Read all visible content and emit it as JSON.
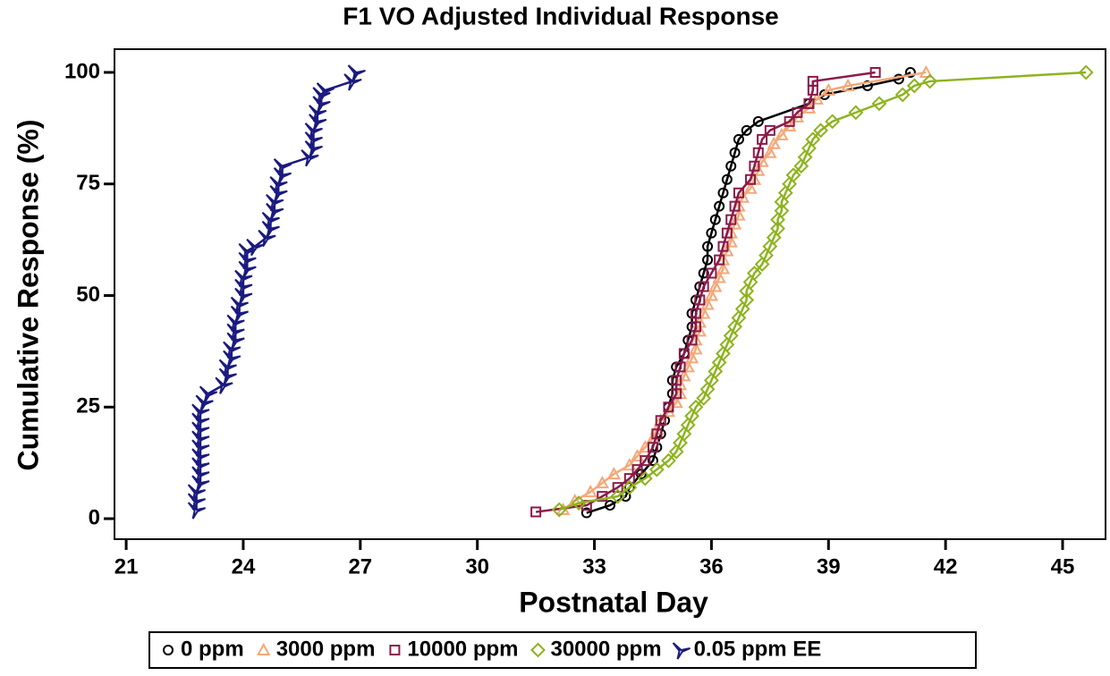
{
  "chart_data": {
    "type": "line",
    "title": "F1 VO Adjusted Individual Response",
    "x_label": "Postnatal Day",
    "y_label": "Cumulative Response (%)",
    "xlim": [
      20.7,
      46.1
    ],
    "ylim": [
      -4.6,
      105.2
    ],
    "xticks": [
      21,
      24,
      27,
      30,
      33,
      36,
      39,
      42,
      45
    ],
    "yticks": [
      0,
      25,
      50,
      75,
      100
    ],
    "legend": "bottom",
    "series": [
      {
        "name": "0 ppm",
        "color": "#000000",
        "marker": "circle",
        "x": [
          32.8,
          33.4,
          33.8,
          33.9,
          34.2,
          34.5,
          34.6,
          34.7,
          34.8,
          34.9,
          35.0,
          35.0,
          35.1,
          35.3,
          35.4,
          35.5,
          35.5,
          35.6,
          35.7,
          35.8,
          35.9,
          35.9,
          36.0,
          36.1,
          36.2,
          36.3,
          36.4,
          36.5,
          36.6,
          36.7,
          36.9,
          37.2,
          38.5,
          38.9,
          40.0,
          40.8,
          41.1
        ],
        "values": [
          1.3,
          3,
          5,
          7,
          10,
          13,
          16,
          19,
          22,
          25,
          28,
          31,
          34,
          37,
          40,
          43,
          46,
          49,
          52,
          55,
          58,
          61,
          64,
          67,
          70,
          73,
          76,
          79,
          82,
          85,
          87,
          89,
          93,
          95,
          97,
          98.5,
          100
        ]
      },
      {
        "name": "3000 ppm",
        "color": "#f4a878",
        "marker": "triangle",
        "x": [
          32.2,
          32.5,
          32.9,
          33.2,
          33.5,
          33.9,
          34.1,
          34.3,
          34.5,
          34.6,
          34.7,
          34.9,
          35.1,
          35.2,
          35.2,
          35.3,
          35.4,
          35.5,
          35.6,
          35.6,
          35.7,
          35.7,
          35.8,
          35.9,
          36.0,
          36.1,
          36.2,
          36.3,
          36.3,
          36.4,
          36.5,
          36.5,
          36.6,
          36.7,
          36.7,
          36.8,
          37.0,
          37.1,
          37.2,
          37.3,
          37.5,
          37.6,
          37.8,
          38.0,
          38.2,
          38.5,
          38.7,
          39.0,
          39.5,
          41.5
        ],
        "values": [
          2,
          4,
          6,
          8,
          10,
          12,
          14,
          16,
          18,
          20,
          22,
          24,
          26,
          28,
          30,
          32,
          34,
          36,
          38,
          40,
          42,
          44,
          46,
          48,
          50,
          52,
          54,
          56,
          58,
          60,
          62,
          64,
          66,
          68,
          70,
          72,
          74,
          76,
          78,
          80,
          82,
          84,
          86,
          88,
          90,
          92,
          94,
          96,
          97,
          100
        ]
      },
      {
        "name": "10000 ppm",
        "color": "#8b1a4a",
        "marker": "square",
        "x": [
          31.5,
          32.8,
          33.2,
          33.6,
          33.9,
          34.1,
          34.3,
          34.5,
          34.6,
          34.7,
          34.9,
          35.1,
          35.1,
          35.2,
          35.3,
          35.5,
          35.6,
          35.6,
          35.7,
          35.8,
          36.0,
          36.2,
          36.3,
          36.4,
          36.5,
          36.6,
          36.7,
          37.0,
          37.1,
          37.2,
          37.3,
          37.5,
          38.0,
          38.2,
          38.5,
          38.6,
          38.6,
          40.2
        ],
        "values": [
          1.5,
          3,
          5,
          7,
          9,
          11,
          13,
          16,
          19,
          22,
          25,
          28,
          31,
          34,
          37,
          40,
          43,
          46,
          49,
          52,
          55,
          58,
          61,
          64,
          67,
          70,
          73,
          76,
          79,
          82,
          85,
          87,
          89,
          91,
          93,
          96,
          98,
          100
        ]
      },
      {
        "name": "30000 ppm",
        "color": "#8db31e",
        "marker": "diamond",
        "x": [
          32.1,
          32.6,
          33.6,
          33.9,
          34.3,
          34.6,
          34.9,
          35.1,
          35.2,
          35.3,
          35.4,
          35.5,
          35.6,
          35.8,
          35.9,
          36.0,
          36.1,
          36.2,
          36.3,
          36.4,
          36.5,
          36.6,
          36.7,
          36.8,
          36.9,
          36.9,
          37.0,
          37.1,
          37.3,
          37.4,
          37.5,
          37.6,
          37.7,
          37.7,
          37.8,
          37.8,
          37.9,
          38.0,
          38.1,
          38.3,
          38.4,
          38.5,
          38.6,
          38.8,
          39.1,
          39.7,
          40.3,
          40.9,
          41.2,
          41.6,
          45.6
        ],
        "values": [
          2,
          3.5,
          5,
          7,
          9,
          11,
          13,
          15,
          17,
          19,
          21,
          23,
          25,
          27,
          29,
          31,
          33,
          35,
          37,
          39,
          41,
          43,
          45,
          47,
          49,
          51,
          53,
          55,
          57,
          59,
          61,
          63,
          65,
          67,
          69,
          71,
          73,
          75,
          77,
          79,
          81,
          83,
          85,
          87,
          89,
          91,
          93,
          95,
          97,
          98,
          100
        ]
      },
      {
        "name": "0.05 ppm EE",
        "color": "#1a1a80",
        "marker": "star",
        "x": [
          22.8,
          22.8,
          22.8,
          22.9,
          22.9,
          22.9,
          22.9,
          22.9,
          22.9,
          22.9,
          22.9,
          22.9,
          23.0,
          23.1,
          23.5,
          23.6,
          23.6,
          23.7,
          23.7,
          23.8,
          23.8,
          23.8,
          23.9,
          23.9,
          24.0,
          24.0,
          24.0,
          24.1,
          24.1,
          24.1,
          24.3,
          24.6,
          24.7,
          24.7,
          24.8,
          24.8,
          24.9,
          24.9,
          25.0,
          25.0,
          25.7,
          25.8,
          25.8,
          25.8,
          25.9,
          25.9,
          26.0,
          26.0,
          26.1,
          26.8,
          26.9
        ],
        "values": [
          2,
          4,
          6,
          8,
          10,
          12,
          14,
          16,
          18,
          20,
          22,
          24,
          26,
          28,
          30,
          32,
          34,
          36,
          38,
          40,
          42,
          44,
          46,
          48,
          50,
          52,
          54,
          56,
          58,
          60,
          61,
          63,
          65,
          67,
          69,
          71,
          73,
          75,
          77,
          79,
          81,
          83,
          85,
          87,
          89,
          91,
          93,
          95,
          96,
          98,
          100
        ]
      }
    ]
  }
}
